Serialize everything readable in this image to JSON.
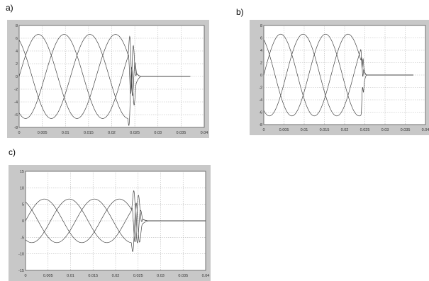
{
  "panels": [
    {
      "label": "a)"
    },
    {
      "label": "b)"
    },
    {
      "label": "c)"
    }
  ],
  "chart_data": [
    {
      "type": "line",
      "panel": "a)",
      "xlim": [
        0,
        0.04
      ],
      "ylim": [
        -8,
        8
      ],
      "xticks": [
        "0",
        "0.005",
        "0.01",
        "0.015",
        "0.02",
        "0.025",
        "0.03",
        "0.035",
        "0.04"
      ],
      "yticks": [
        "8",
        "6",
        "4",
        "2",
        "0",
        "-2",
        "-4",
        "-6",
        "-8"
      ],
      "grid": true,
      "amplitude": 6.6,
      "frequency_hz": 60,
      "phase_shifts_deg": [
        0,
        -120,
        120
      ],
      "fault_start": 0.0235,
      "oscillation_peak": 7.0,
      "decay_end": 0.0265,
      "after_fault_value": 0,
      "signal_end": 0.037
    },
    {
      "type": "line",
      "panel": "b)",
      "xlim": [
        0,
        0.04
      ],
      "ylim": [
        -8,
        8
      ],
      "xticks": [
        "0",
        "0.005",
        "0.01",
        "0.015",
        "0.02",
        "0.025",
        "0.03",
        "0.035",
        "0.04"
      ],
      "yticks": [
        "8",
        "6",
        "4",
        "2",
        "0",
        "-2",
        "-4",
        "-6",
        "-8"
      ],
      "grid": true,
      "amplitude": 6.6,
      "frequency_hz": 60,
      "phase_shifts_deg": [
        0,
        -120,
        120
      ],
      "fault_start": 0.024,
      "oscillation_peak": 2.0,
      "decay_end": 0.0255,
      "after_fault_value": 0,
      "signal_end": 0.037
    },
    {
      "type": "line",
      "panel": "c)",
      "xlim": [
        0,
        0.04
      ],
      "ylim": [
        -15,
        15
      ],
      "xticks": [
        "0",
        "0.005",
        "0.01",
        "0.015",
        "0.02",
        "0.025",
        "0.03",
        "0.035",
        "0.04"
      ],
      "yticks": [
        "15",
        "10",
        "5",
        "0",
        "-5",
        "-10",
        "-15"
      ],
      "grid": true,
      "amplitude": 6.6,
      "frequency_hz": 60,
      "phase_shifts_deg": [
        0,
        -120,
        120
      ],
      "fault_start": 0.0235,
      "oscillation_peak": 12.5,
      "decay_end": 0.0275,
      "after_fault_value": 0,
      "signal_end": 0.04
    }
  ]
}
